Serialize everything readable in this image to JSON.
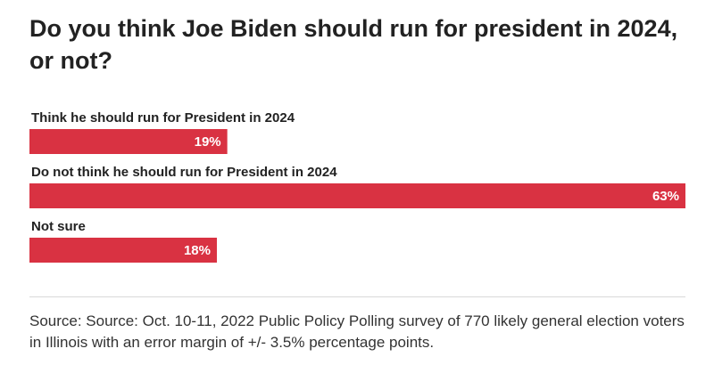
{
  "chart_data": {
    "type": "bar",
    "orientation": "horizontal",
    "title": "Do you think Joe Biden should run for president in 2024, or not?",
    "categories": [
      "Think he should run for President in 2024",
      "Do not think he should run for President in 2024",
      "Not sure"
    ],
    "values": [
      19,
      63,
      18
    ],
    "value_labels": [
      "19%",
      "63%",
      "18%"
    ],
    "unit": "%",
    "xlim": [
      0,
      63
    ],
    "bar_color": "#d93242",
    "legend": "none",
    "grid": false
  },
  "source": "Source: Source: Oct. 10-11, 2022 Public Policy Polling survey of 770 likely general election voters in Illinois with an error margin of +/- 3.5% percentage points."
}
